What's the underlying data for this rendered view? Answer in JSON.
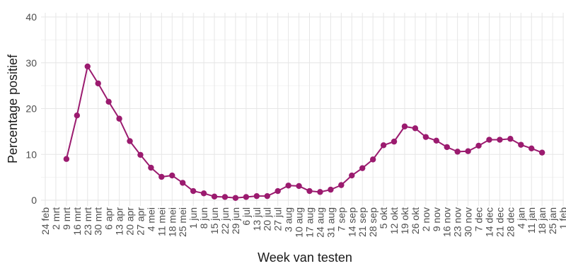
{
  "chart_data": {
    "type": "line",
    "title": "",
    "xlabel": "Week van testen",
    "ylabel": "Percentage positief",
    "ylim": [
      0,
      40
    ],
    "yticks": [
      0,
      10,
      20,
      30,
      40
    ],
    "grid": true,
    "color": "#9b1b6f",
    "categories": [
      "24 feb",
      "2 mrt",
      "9 mrt",
      "16 mrt",
      "23 mrt",
      "30 mrt",
      "6 apr",
      "13 apr",
      "20 apr",
      "27 apr",
      "4 mei",
      "11 mei",
      "18 mei",
      "25 mei",
      "1 jun",
      "8 jun",
      "15 jun",
      "22 jun",
      "29 jun",
      "6 jul",
      "13 jul",
      "20 jul",
      "27 jul",
      "3 aug",
      "10 aug",
      "17 aug",
      "24 aug",
      "31 aug",
      "7 sep",
      "14 sep",
      "21 sep",
      "28 sep",
      "5 okt",
      "12 okt",
      "19 okt",
      "26 okt",
      "2 nov",
      "9 nov",
      "16 nov",
      "23 nov",
      "30 nov",
      "7 dec",
      "14 dec",
      "21 dec",
      "28 dec",
      "4 jan",
      "11 jan",
      "18 jan",
      "25 jan",
      "1 feb"
    ],
    "series": [
      {
        "values": [
          null,
          null,
          9.0,
          18.5,
          29.2,
          25.5,
          21.5,
          17.8,
          12.9,
          9.9,
          7.1,
          5.1,
          5.4,
          3.8,
          2.0,
          1.5,
          0.8,
          0.7,
          0.5,
          0.7,
          0.9,
          0.9,
          2.0,
          3.2,
          3.1,
          2.0,
          1.8,
          2.3,
          3.3,
          5.4,
          7.0,
          8.9,
          12.0,
          12.8,
          16.1,
          15.7,
          13.8,
          13.0,
          11.6,
          10.6,
          10.7,
          11.9,
          13.2,
          13.2,
          13.4,
          12.1,
          11.3,
          10.4,
          null,
          null
        ]
      }
    ]
  }
}
